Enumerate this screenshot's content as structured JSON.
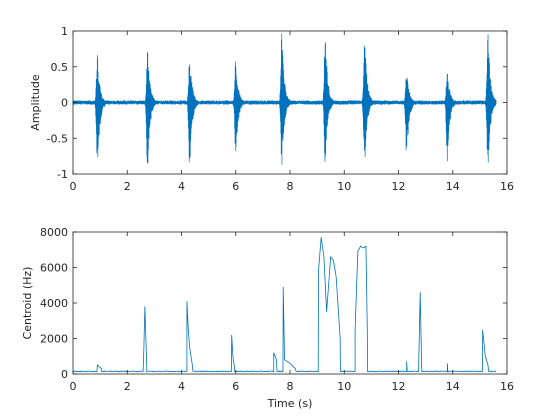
{
  "chart_data": [
    {
      "type": "line",
      "xlabel": "",
      "ylabel": "Amplitude",
      "xlim": [
        0,
        16
      ],
      "ylim": [
        -1,
        1
      ],
      "xticks": [
        "0",
        "2",
        "4",
        "6",
        "8",
        "10",
        "12",
        "14",
        "16"
      ],
      "yticks": [
        "-1",
        "-0.5",
        "0",
        "0.5",
        "1"
      ],
      "grid": false,
      "line_color": "#0072BD",
      "series": [
        {
          "kind": "waveform",
          "baseline_noise": 0.02,
          "duration": 15.6,
          "events": [
            {
              "t": 0.9,
              "pos_peak": 0.7,
              "neg_peak": -1.0
            },
            {
              "t": 2.75,
              "pos_peak": 0.85,
              "neg_peak": -1.0
            },
            {
              "t": 4.3,
              "pos_peak": 0.75,
              "neg_peak": -1.0
            },
            {
              "t": 6.0,
              "pos_peak": 0.68,
              "neg_peak": -0.8
            },
            {
              "t": 7.7,
              "pos_peak": 1.0,
              "neg_peak": -1.0
            },
            {
              "t": 9.3,
              "pos_peak": 1.0,
              "neg_peak": -0.9
            },
            {
              "t": 10.75,
              "pos_peak": 1.0,
              "neg_peak": -1.0
            },
            {
              "t": 12.3,
              "pos_peak": 0.5,
              "neg_peak": -0.85
            },
            {
              "t": 13.8,
              "pos_peak": 0.5,
              "neg_peak": -0.85
            },
            {
              "t": 15.3,
              "pos_peak": 1.0,
              "neg_peak": -1.0
            }
          ]
        }
      ]
    },
    {
      "type": "line",
      "xlabel": "Time (s)",
      "ylabel": "Centroid (Hz)",
      "xlim": [
        0,
        16
      ],
      "ylim": [
        0,
        8000
      ],
      "xticks": [
        "0",
        "2",
        "4",
        "6",
        "8",
        "10",
        "12",
        "14",
        "16"
      ],
      "yticks": [
        "0",
        "2000",
        "4000",
        "6000",
        "8000"
      ],
      "grid": false,
      "line_color": "#0072BD",
      "series": [
        {
          "kind": "centroid",
          "baseline": 150,
          "duration": 15.6,
          "x": [
            0.9,
            1.05,
            2.6,
            2.65,
            2.72,
            4.2,
            4.25,
            4.3,
            4.4,
            5.85,
            5.9,
            5.95,
            7.4,
            7.5,
            7.75,
            7.8,
            8.0,
            8.2,
            9.05,
            9.15,
            9.25,
            9.35,
            9.5,
            9.6,
            9.7,
            9.85,
            10.4,
            10.5,
            10.6,
            10.7,
            10.8,
            10.85,
            12.3,
            12.75,
            12.8,
            12.85,
            13.8,
            15.1,
            15.2,
            15.3
          ],
          "y": [
            500,
            300,
            700,
            3800,
            400,
            4100,
            2500,
            1500,
            500,
            2200,
            900,
            400,
            1200,
            800,
            4900,
            800,
            600,
            300,
            5800,
            7700,
            6600,
            3500,
            6600,
            6400,
            5500,
            2000,
            2500,
            6900,
            7200,
            7100,
            7200,
            2500,
            700,
            900,
            4600,
            600,
            600,
            2500,
            1000,
            500
          ]
        }
      ]
    }
  ]
}
